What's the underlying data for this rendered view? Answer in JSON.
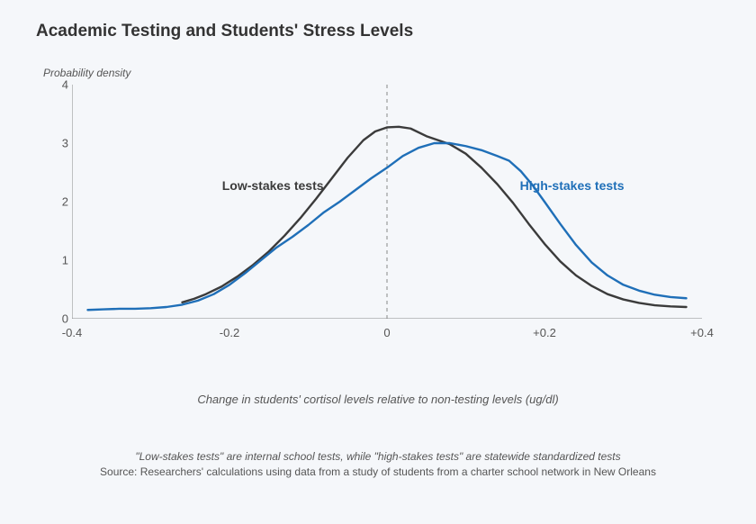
{
  "chart": {
    "type": "line",
    "title": "Academic Testing and Students' Stress Levels",
    "y_label": "Probability density",
    "x_label": "Change in students' cortisol levels relative to non-testing levels (ug/dl)",
    "xlim": [
      -0.4,
      0.4
    ],
    "ylim": [
      0,
      4
    ],
    "ytick_step": 1,
    "xticks": [
      -0.4,
      -0.2,
      0,
      0.2,
      0.4
    ],
    "xtick_labels": [
      "-0.4",
      "-0.2",
      "0",
      "+0.2",
      "+0.4"
    ],
    "background_color": "#f5f7fa",
    "axis_line_color": "#888888",
    "axis_line_width": 1,
    "zero_line_dash": "4,4",
    "series": [
      {
        "name": "Low-stakes tests",
        "label": "Low-stakes tests",
        "color": "#3b3b3b",
        "line_width": 2.4,
        "label_pos": {
          "x": -0.145,
          "y": 2.28
        },
        "points": [
          [
            -0.26,
            0.28
          ],
          [
            -0.245,
            0.34
          ],
          [
            -0.23,
            0.42
          ],
          [
            -0.21,
            0.55
          ],
          [
            -0.19,
            0.72
          ],
          [
            -0.17,
            0.92
          ],
          [
            -0.15,
            1.15
          ],
          [
            -0.13,
            1.42
          ],
          [
            -0.11,
            1.72
          ],
          [
            -0.09,
            2.05
          ],
          [
            -0.07,
            2.4
          ],
          [
            -0.05,
            2.75
          ],
          [
            -0.03,
            3.05
          ],
          [
            -0.015,
            3.2
          ],
          [
            0.0,
            3.27
          ],
          [
            0.015,
            3.28
          ],
          [
            0.03,
            3.25
          ],
          [
            0.05,
            3.12
          ],
          [
            0.065,
            3.05
          ],
          [
            0.08,
            2.98
          ],
          [
            0.1,
            2.82
          ],
          [
            0.12,
            2.58
          ],
          [
            0.14,
            2.3
          ],
          [
            0.16,
            1.98
          ],
          [
            0.18,
            1.62
          ],
          [
            0.2,
            1.28
          ],
          [
            0.22,
            0.98
          ],
          [
            0.24,
            0.74
          ],
          [
            0.26,
            0.56
          ],
          [
            0.28,
            0.42
          ],
          [
            0.3,
            0.33
          ],
          [
            0.32,
            0.27
          ],
          [
            0.34,
            0.23
          ],
          [
            0.36,
            0.21
          ],
          [
            0.38,
            0.2
          ]
        ]
      },
      {
        "name": "High-stakes tests",
        "label": "High-stakes tests",
        "color": "#1f6fb8",
        "line_width": 2.4,
        "label_pos": {
          "x": 0.235,
          "y": 2.28
        },
        "points": [
          [
            -0.38,
            0.15
          ],
          [
            -0.36,
            0.16
          ],
          [
            -0.34,
            0.17
          ],
          [
            -0.32,
            0.17
          ],
          [
            -0.3,
            0.18
          ],
          [
            -0.28,
            0.2
          ],
          [
            -0.26,
            0.24
          ],
          [
            -0.24,
            0.31
          ],
          [
            -0.22,
            0.42
          ],
          [
            -0.2,
            0.58
          ],
          [
            -0.18,
            0.78
          ],
          [
            -0.16,
            1.0
          ],
          [
            -0.14,
            1.22
          ],
          [
            -0.12,
            1.4
          ],
          [
            -0.1,
            1.6
          ],
          [
            -0.08,
            1.82
          ],
          [
            -0.06,
            2.0
          ],
          [
            -0.04,
            2.2
          ],
          [
            -0.02,
            2.4
          ],
          [
            0.0,
            2.58
          ],
          [
            0.02,
            2.78
          ],
          [
            0.04,
            2.92
          ],
          [
            0.06,
            3.0
          ],
          [
            0.08,
            3.0
          ],
          [
            0.1,
            2.95
          ],
          [
            0.12,
            2.88
          ],
          [
            0.14,
            2.78
          ],
          [
            0.155,
            2.7
          ],
          [
            0.17,
            2.52
          ],
          [
            0.185,
            2.28
          ],
          [
            0.2,
            2.0
          ],
          [
            0.22,
            1.62
          ],
          [
            0.24,
            1.26
          ],
          [
            0.26,
            0.96
          ],
          [
            0.28,
            0.74
          ],
          [
            0.3,
            0.58
          ],
          [
            0.32,
            0.48
          ],
          [
            0.34,
            0.41
          ],
          [
            0.36,
            0.37
          ],
          [
            0.38,
            0.35
          ]
        ]
      }
    ],
    "title_fontsize": 19,
    "label_fontsize": 13
  },
  "footnote": {
    "note": "\"Low-stakes tests\" are internal school tests, while \"high-stakes tests\" are statewide standardized tests",
    "source": "Source: Researchers' calculations using data from a study of students from a charter school network in New Orleans"
  }
}
